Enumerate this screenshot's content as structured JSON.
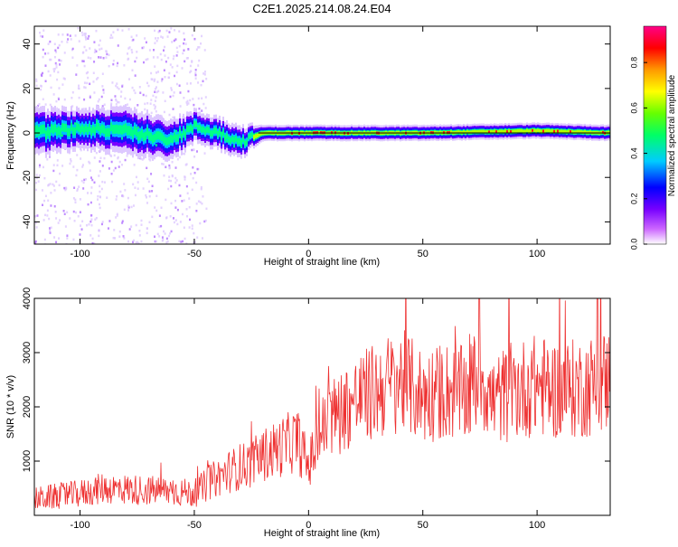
{
  "title": "C2E1.2025.214.08.24.E04",
  "colors": {
    "snr_line": "#ee3030",
    "spectral_band": "#ffb400",
    "axis": "#000000"
  },
  "chart_data": [
    {
      "type": "heatmap",
      "title": "C2E1.2025.214.08.24.E04",
      "xlabel": "Height of straight line (km)",
      "ylabel": "Frequency (Hz)",
      "xlim": [
        -120,
        132
      ],
      "ylim": [
        -50,
        48
      ],
      "x_ticks": [
        -100,
        -50,
        0,
        50,
        100
      ],
      "y_ticks": [
        -40,
        -20,
        0,
        20,
        40
      ],
      "colorbar": {
        "label": "Normalized spectral amplitude",
        "range": [
          0,
          0.96
        ],
        "ticks": [
          "0.0",
          "0.2",
          "0.4",
          "0.6",
          "0.8"
        ],
        "colormap": "rainbow"
      },
      "description_points": {
        "x": [
          -120,
          -100,
          -80,
          -60,
          -50,
          -40,
          -30,
          -20,
          0,
          50,
          100,
          132
        ],
        "band_center_hz": [
          0,
          2,
          1,
          -3,
          3,
          0,
          -4,
          0,
          0,
          0,
          1,
          0
        ],
        "band_halfwidth_hz": [
          6,
          5,
          6,
          5,
          4,
          4,
          4,
          2,
          2,
          2,
          2,
          2
        ]
      }
    },
    {
      "type": "line",
      "xlabel": "Height of straight line (km)",
      "ylabel": "SNR (10 * v/v)",
      "xlim": [
        -120,
        132
      ],
      "ylim": [
        0,
        4000
      ],
      "x_ticks": [
        -100,
        -50,
        0,
        50,
        100
      ],
      "y_ticks": [
        1000,
        2000,
        3000,
        4000
      ],
      "x": [
        -120,
        -110,
        -100,
        -90,
        -80,
        -70,
        -60,
        -50,
        -45,
        -40,
        -35,
        -30,
        -25,
        -20,
        -15,
        -10,
        -5,
        0,
        5,
        10,
        20,
        30,
        40,
        50,
        60,
        70,
        75,
        80,
        90,
        100,
        110,
        120,
        132
      ],
      "y": [
        300,
        350,
        400,
        500,
        480,
        460,
        450,
        400,
        550,
        700,
        800,
        900,
        950,
        1100,
        1200,
        1300,
        1400,
        900,
        1500,
        1800,
        2100,
        2300,
        2500,
        2200,
        2300,
        2200,
        2700,
        2100,
        2300,
        2400,
        2300,
        2350,
        2500
      ]
    }
  ]
}
